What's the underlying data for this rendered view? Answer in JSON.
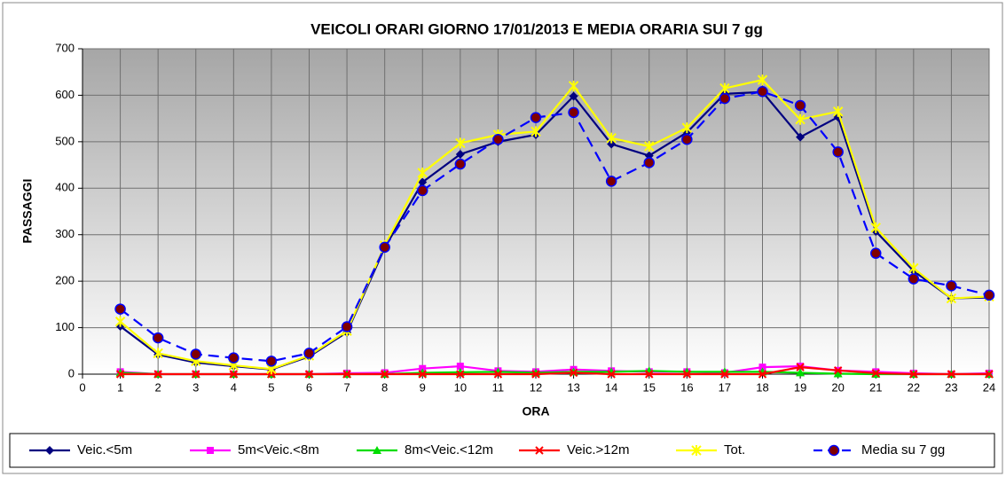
{
  "chart_data": {
    "type": "line",
    "title": "VEICOLI ORARI GIORNO 17/01/2013 E MEDIA ORARIA SUI 7 gg",
    "xlabel": "ORA",
    "ylabel": "PASSAGGI",
    "x": [
      1,
      2,
      3,
      4,
      5,
      6,
      7,
      8,
      9,
      10,
      11,
      12,
      13,
      14,
      15,
      16,
      17,
      18,
      19,
      20,
      21,
      22,
      23,
      24
    ],
    "xlim": [
      0,
      24
    ],
    "xticks": [
      0,
      1,
      2,
      3,
      4,
      5,
      6,
      7,
      8,
      9,
      10,
      11,
      12,
      13,
      14,
      15,
      16,
      17,
      18,
      19,
      20,
      21,
      22,
      23,
      24
    ],
    "ylim": [
      0,
      700
    ],
    "yticks": [
      0,
      100,
      200,
      300,
      400,
      500,
      600,
      700
    ],
    "grid": true,
    "legend": "bottom",
    "series": [
      {
        "name": "Veic.<5m",
        "color": "#000080",
        "marker": "diamond",
        "dash": false,
        "values": [
          103,
          42,
          25,
          17,
          10,
          38,
          90,
          272,
          413,
          473,
          500,
          515,
          598,
          495,
          470,
          520,
          603,
          607,
          510,
          553,
          307,
          222,
          163,
          165
        ]
      },
      {
        "name": "5m<Veic.<8m",
        "color": "#ff00ff",
        "marker": "square",
        "dash": false,
        "values": [
          5,
          0,
          0,
          0,
          0,
          0,
          2,
          3,
          12,
          17,
          7,
          5,
          10,
          7,
          5,
          5,
          3,
          15,
          17,
          8,
          5,
          2,
          0,
          2
        ]
      },
      {
        "name": "8m<Veic.<12m",
        "color": "#00dd00",
        "marker": "triangle",
        "dash": false,
        "values": [
          3,
          0,
          0,
          0,
          0,
          0,
          0,
          0,
          3,
          4,
          5,
          3,
          5,
          5,
          7,
          5,
          5,
          5,
          3,
          1,
          0,
          0,
          0,
          0
        ]
      },
      {
        "name": "Veic.>12m",
        "color": "#ff0000",
        "marker": "x",
        "dash": false,
        "values": [
          0,
          0,
          0,
          0,
          0,
          0,
          0,
          0,
          0,
          0,
          0,
          0,
          3,
          0,
          0,
          0,
          0,
          0,
          15,
          8,
          2,
          0,
          0,
          0
        ]
      },
      {
        "name": "Tot.",
        "color": "#ffff00",
        "marker": "star",
        "dash": false,
        "values": [
          113,
          45,
          28,
          19,
          11,
          40,
          93,
          277,
          433,
          497,
          515,
          522,
          620,
          508,
          490,
          530,
          615,
          633,
          548,
          565,
          315,
          228,
          163,
          167
        ]
      },
      {
        "name": "Media su 7 gg",
        "color": "#0000ff",
        "marker": "circle",
        "dash": true,
        "values": [
          140,
          78,
          43,
          35,
          28,
          45,
          102,
          273,
          395,
          452,
          505,
          552,
          563,
          415,
          455,
          505,
          593,
          608,
          578,
          478,
          260,
          205,
          190,
          170
        ]
      }
    ]
  }
}
